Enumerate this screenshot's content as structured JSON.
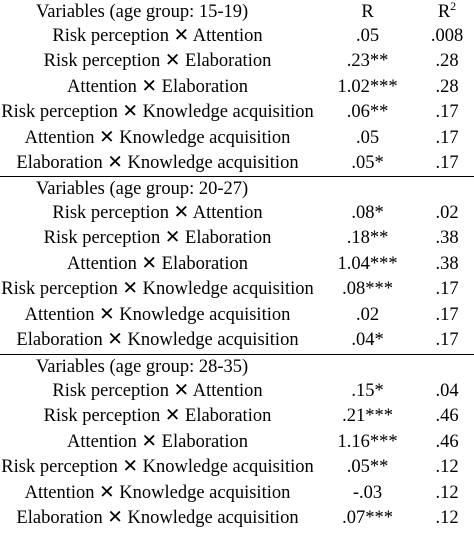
{
  "table": {
    "columns": {
      "r_label": "R",
      "r2_label": "R",
      "r2_sup": "2"
    },
    "groups": [
      {
        "header": "Variables (age group: 15-19)",
        "rows": [
          {
            "variables": "Risk perception ✕ Attention",
            "r": ".05",
            "r2": ".008"
          },
          {
            "variables": "Risk perception ✕ Elaboration",
            "r": ".23**",
            "r2": ".28"
          },
          {
            "variables": "Attention ✕ Elaboration",
            "r": "1.02***",
            "r2": ".28"
          },
          {
            "variables": "Risk perception ✕ Knowledge acquisition",
            "r": ".06**",
            "r2": ".17"
          },
          {
            "variables": "Attention ✕ Knowledge acquisition",
            "r": ".05",
            "r2": ".17"
          },
          {
            "variables": "Elaboration ✕ Knowledge acquisition",
            "r": ".05*",
            "r2": ".17"
          }
        ]
      },
      {
        "header": "Variables (age group: 20-27)",
        "rows": [
          {
            "variables": "Risk perception ✕ Attention",
            "r": ".08*",
            "r2": ".02"
          },
          {
            "variables": "Risk perception ✕ Elaboration",
            "r": ".18**",
            "r2": ".38"
          },
          {
            "variables": "Attention ✕ Elaboration",
            "r": "1.04***",
            "r2": ".38"
          },
          {
            "variables": "Risk perception ✕ Knowledge acquisition",
            "r": ".08***",
            "r2": ".17"
          },
          {
            "variables": "Attention ✕ Knowledge acquisition",
            "r": ".02",
            "r2": ".17"
          },
          {
            "variables": "Elaboration ✕ Knowledge acquisition",
            "r": ".04*",
            "r2": ".17"
          }
        ]
      },
      {
        "header": "Variables (age group: 28-35)",
        "rows": [
          {
            "variables": "Risk perception ✕ Attention",
            "r": ".15*",
            "r2": ".04"
          },
          {
            "variables": "Risk perception ✕ Elaboration",
            "r": ".21***",
            "r2": ".46"
          },
          {
            "variables": "Attention ✕ Elaboration",
            "r": "1.16***",
            "r2": ".46"
          },
          {
            "variables": "Risk perception ✕ Knowledge acquisition",
            "r": ".05**",
            "r2": ".12"
          },
          {
            "variables": "Attention ✕ Knowledge acquisition",
            "r": "-.03",
            "r2": ".12"
          },
          {
            "variables": "Elaboration ✕ Knowledge acquisition",
            "r": ".07***",
            "r2": ".12"
          }
        ]
      }
    ]
  }
}
